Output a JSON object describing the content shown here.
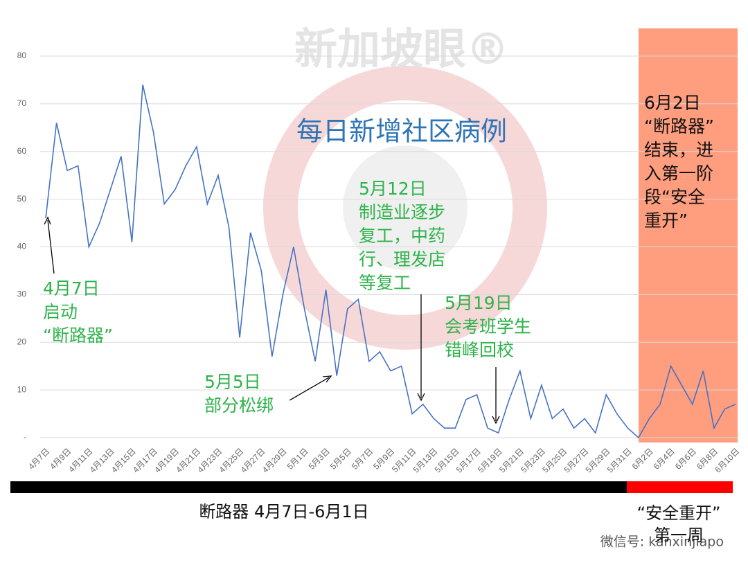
{
  "chart_data": {
    "type": "line",
    "title": "每日新增社区病例",
    "watermark": "新加坡眼®",
    "footer": "微信号: kanxinjiapo",
    "categories": [
      "4月7日",
      null,
      "4月9日",
      null,
      "4月11日",
      null,
      "4月13日",
      null,
      "4月15日",
      null,
      "4月17日",
      null,
      "4月19日",
      null,
      "4月21日",
      null,
      "4月23日",
      null,
      "4月25日",
      null,
      "4月27日",
      null,
      "4月29日",
      null,
      "5月1日",
      null,
      "5月3日",
      null,
      "5月5日",
      null,
      "5月7日",
      null,
      "5月9日",
      null,
      "5月11日",
      null,
      "5月13日",
      null,
      "5月15日",
      null,
      "5月17日",
      null,
      "5月19日",
      null,
      "5月21日",
      null,
      "5月23日",
      null,
      "5月25日",
      null,
      "5月27日",
      null,
      "5月29日",
      null,
      "5月31日",
      null,
      "6月2日",
      null,
      "6月4日",
      null,
      "6月6日",
      null,
      "6月8日",
      null,
      "6月10日"
    ],
    "values": [
      46,
      66,
      56,
      57,
      40,
      45,
      52,
      59,
      41,
      74,
      64,
      49,
      52,
      57,
      61,
      49,
      55,
      44,
      21,
      43,
      35,
      17,
      30,
      40,
      27,
      16,
      31,
      13,
      27,
      29,
      16,
      18,
      14,
      15,
      5,
      7,
      4,
      2,
      2,
      8,
      9,
      2,
      1,
      8,
      14,
      4,
      11,
      4,
      6,
      2,
      4,
      1,
      9,
      5,
      2,
      0,
      4,
      7,
      15,
      11,
      7,
      14,
      2,
      6,
      7
    ],
    "color": "#4472c4",
    "ylim": [
      0,
      80
    ],
    "yticks": [
      {
        "value": 0,
        "label": "-"
      },
      10,
      20,
      30,
      40,
      50,
      60,
      70,
      80
    ],
    "grid": true,
    "annotations": [
      {
        "lines": [
          "4月7日",
          "启动",
          "“断路器”"
        ],
        "color": "#2db34a"
      },
      {
        "lines": [
          "5月5日",
          "部分松绑"
        ],
        "color": "#2db34a"
      },
      {
        "lines": [
          "5月12日",
          "制造业逐步",
          "复工，中药",
          "行、理发店",
          "等复工"
        ],
        "color": "#2db34a"
      },
      {
        "lines": [
          "5月19日",
          "会考班学生",
          "错峰回校"
        ],
        "color": "#2db34a"
      },
      {
        "lines": [
          "6月2日",
          "“断路器”",
          "结束，进",
          "入第一阶",
          "段“安全",
          "重开”"
        ],
        "color": "#111111"
      }
    ],
    "periods": [
      {
        "lines": [
          "断路器 4月7日-6月1日"
        ],
        "color": "#000000"
      },
      {
        "lines": [
          "“安全重开”",
          "第一周"
        ],
        "color": "#ff0000"
      }
    ]
  }
}
